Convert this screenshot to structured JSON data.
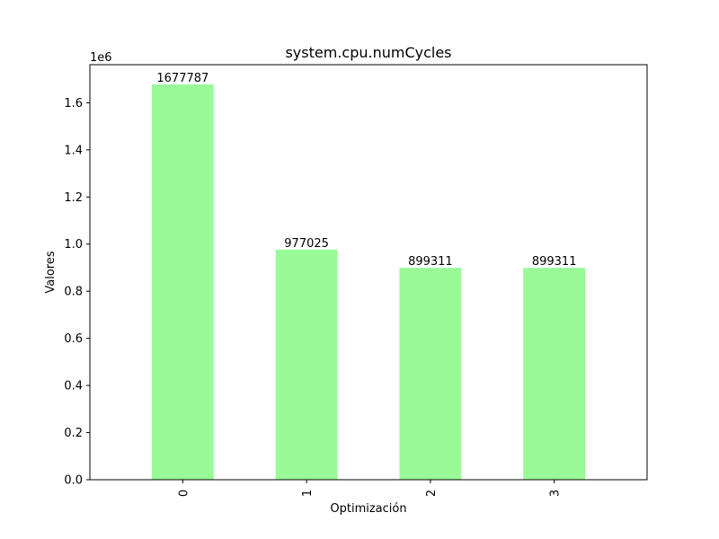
{
  "chart_data": {
    "type": "bar",
    "title": "system.cpu.numCycles",
    "xlabel": "Optimización",
    "ylabel": "Valores",
    "categories": [
      "0",
      "1",
      "2",
      "3"
    ],
    "values": [
      1677787,
      977025,
      899311,
      899311
    ],
    "data_labels": [
      "1677787",
      "977025",
      "899311",
      "899311"
    ],
    "y_ticks": [
      0.0,
      0.2,
      0.4,
      0.6,
      0.8,
      1.0,
      1.2,
      1.4,
      1.6
    ],
    "y_tick_labels": [
      "0.0",
      "0.2",
      "0.4",
      "0.6",
      "0.8",
      "1.0",
      "1.2",
      "1.4",
      "1.6"
    ],
    "y_scale_label": "1e6",
    "ylim": [
      0,
      1761676
    ],
    "bar_color": "#98fb98",
    "grid": false,
    "legend": "none"
  }
}
